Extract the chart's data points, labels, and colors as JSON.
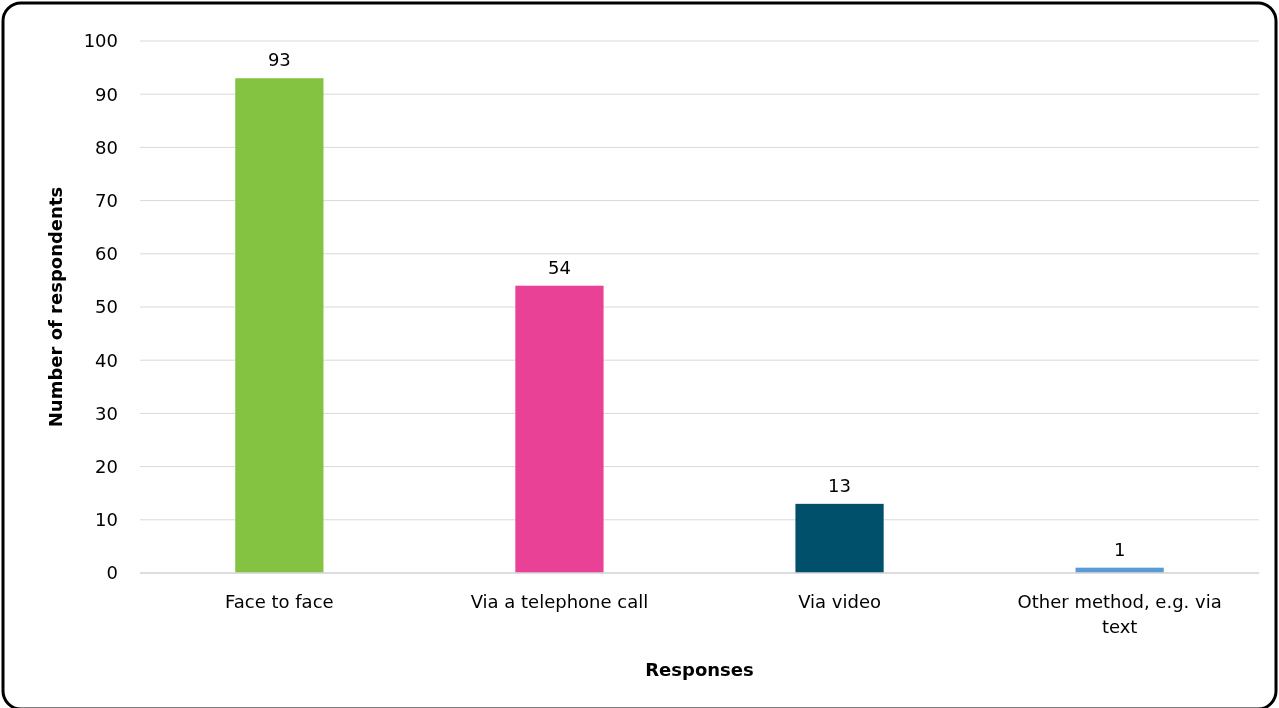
{
  "chart_data": {
    "type": "bar",
    "categories": [
      "Face to face",
      "Via a telephone call",
      "Via video",
      "Other method, e.g. via text"
    ],
    "values": [
      93,
      54,
      13,
      1
    ],
    "colors": [
      "#84c341",
      "#e84196",
      "#004f6b",
      "#5b9bd5"
    ],
    "xlabel": "Responses",
    "ylabel": "Number of respondents",
    "ylim": [
      0,
      100
    ],
    "yticks": [
      0,
      10,
      20,
      30,
      40,
      50,
      60,
      70,
      80,
      90,
      100
    ],
    "grid": "y",
    "data_labels": true
  }
}
